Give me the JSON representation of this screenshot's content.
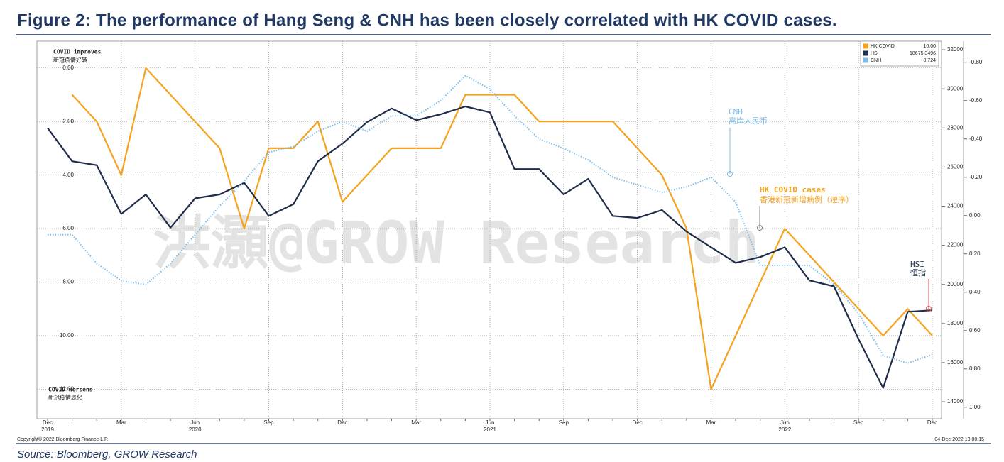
{
  "title": "Figure 2: The performance of Hang Seng & CNH has been closely correlated with HK COVID cases.",
  "source": "Source: Bloomberg, GROW Research",
  "chart_data": {
    "type": "line",
    "x": [
      "Dec",
      null,
      null,
      "Mar",
      null,
      null,
      "Jun",
      null,
      null,
      "Sep",
      null,
      null,
      "Dec",
      null,
      null,
      "Mar",
      null,
      null,
      "Jun",
      null,
      null,
      "Sep",
      null,
      null,
      "Dec",
      null,
      null,
      "Mar",
      null,
      null,
      "Jun",
      null,
      null,
      "Sep",
      null,
      null,
      "Dec"
    ],
    "x_years": [
      "2019",
      null,
      null,
      null,
      null,
      null,
      "2020",
      null,
      null,
      null,
      null,
      null,
      null,
      null,
      null,
      null,
      null,
      null,
      "2021",
      null,
      null,
      null,
      null,
      null,
      null,
      null,
      null,
      null,
      null,
      null,
      "2022",
      null,
      null,
      null,
      null,
      null,
      null
    ],
    "ylim": [
      13.1,
      -1
    ],
    "yticks": [
      {
        "value": 0,
        "label": "0.00"
      },
      {
        "value": 2,
        "label": "2.00"
      },
      {
        "value": 4,
        "label": "4.00"
      },
      {
        "value": 6,
        "label": "6.00"
      },
      {
        "value": 8,
        "label": "8.00"
      },
      {
        "value": 10,
        "label": "10.00"
      },
      {
        "value": 12,
        "label": "12.00"
      }
    ],
    "y2lim": [
      13130,
      32440
    ],
    "y2ticks": [
      14000,
      16000,
      18000,
      20000,
      22000,
      24000,
      26000,
      28000,
      30000,
      32000
    ],
    "y3lim": [
      1.06,
      -0.91
    ],
    "y3ticks": [
      {
        "value": -0.8,
        "label": "-0.80"
      },
      {
        "value": -0.6,
        "label": "-0.60"
      },
      {
        "value": -0.4,
        "label": "-0.40"
      },
      {
        "value": -0.2,
        "label": "-0.20"
      },
      {
        "value": 0,
        "label": "0.00"
      },
      {
        "value": 0.2,
        "label": "0.20"
      },
      {
        "value": 0.4,
        "label": "0.40"
      },
      {
        "value": 0.6,
        "label": "0.60"
      },
      {
        "value": 0.8,
        "label": "0.80"
      },
      {
        "value": 1,
        "label": "1.00"
      }
    ],
    "grid": true,
    "legend": "top-right",
    "series": [
      {
        "name": "HK COVID",
        "legend_value": "10.00",
        "color": "#f5a21e",
        "axis": "y",
        "style": "solid",
        "values": [
          null,
          1,
          2,
          4,
          0,
          1,
          2,
          3,
          6,
          3,
          3,
          2,
          5,
          4,
          3,
          3,
          3,
          1,
          1,
          1,
          2,
          2,
          2,
          2,
          3,
          4,
          6,
          12,
          10,
          8,
          6,
          7,
          8,
          9,
          10,
          9,
          10
        ]
      },
      {
        "name": "HSI",
        "legend_value": "18675.3496",
        "color": "#1f2d4a",
        "axis": "y2",
        "style": "solid",
        "values": [
          28000,
          26300,
          26100,
          23600,
          24600,
          22900,
          24400,
          24600,
          25200,
          23500,
          24100,
          26300,
          27200,
          28300,
          29000,
          28400,
          28700,
          29100,
          28800,
          25900,
          25900,
          24600,
          25400,
          23500,
          23400,
          23800,
          22700,
          21900,
          21100,
          21400,
          21900,
          20200,
          19900,
          17200,
          14700,
          18600,
          18675.3496
        ]
      },
      {
        "name": "CNH",
        "legend_value": "0.724",
        "color": "#7fbde8",
        "axis": "y3",
        "style": "dotted",
        "values": [
          0.1,
          0.1,
          0.25,
          0.34,
          0.36,
          0.25,
          0.1,
          -0.05,
          -0.18,
          -0.33,
          -0.36,
          -0.44,
          -0.49,
          -0.44,
          -0.52,
          -0.52,
          -0.6,
          -0.73,
          -0.66,
          -0.52,
          -0.4,
          -0.35,
          -0.29,
          -0.2,
          -0.16,
          -0.12,
          -0.15,
          -0.2,
          -0.07,
          0.26,
          0.26,
          0.26,
          0.36,
          0.51,
          0.73,
          0.77,
          0.724
        ]
      }
    ],
    "annotations": [
      "COVID improves",
      "新冠疫情好转",
      "COVID worsens",
      "新冠疫情恶化",
      "CNH",
      "离岸人民币",
      "HK COVID cases",
      "香港新冠新增病例（逆序）",
      "HSI",
      "恒指"
    ],
    "watermark": "洪灝@GROW Research",
    "copyright": "Copyright© 2022 Bloomberg Finance L.P.",
    "timestamp": "04-Dec-2022 13:00:15"
  }
}
